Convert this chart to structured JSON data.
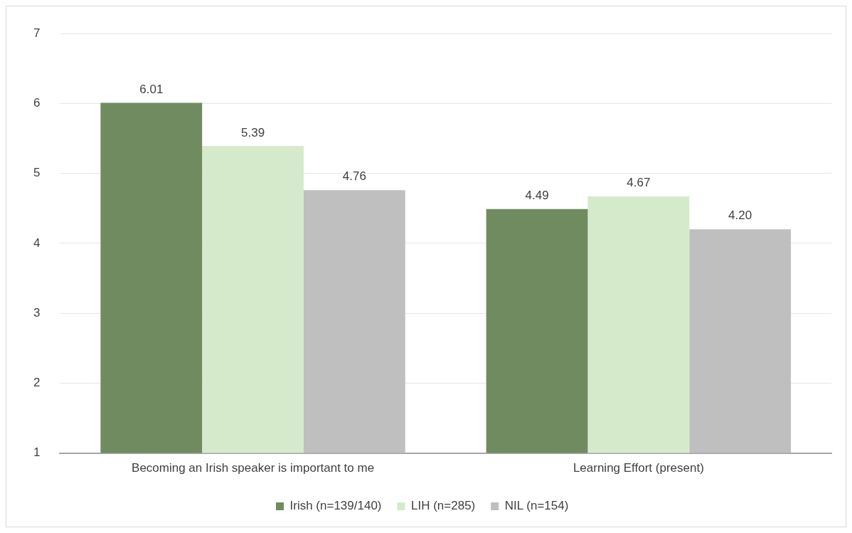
{
  "chart_data": {
    "type": "bar",
    "categories": [
      "Becoming an Irish speaker is important to me",
      "Learning Effort (present)"
    ],
    "series": [
      {
        "name": "Irish (n=139/140)",
        "color": "#718b61",
        "values": [
          6.01,
          4.49
        ],
        "value_labels": [
          "6.01",
          "4.49"
        ]
      },
      {
        "name": "LIH (n=285)",
        "color": "#d5eacb",
        "values": [
          5.39,
          4.67
        ],
        "value_labels": [
          "5.39",
          "4.67"
        ]
      },
      {
        "name": "NIL (n=154)",
        "color": "#bfbfbf",
        "values": [
          4.76,
          4.2
        ],
        "value_labels": [
          "4.76",
          "4.20"
        ]
      }
    ],
    "ylim": [
      1,
      7
    ],
    "yticks": [
      1,
      2,
      3,
      4,
      5,
      6,
      7
    ],
    "grid": "y",
    "legend": "bottom"
  }
}
